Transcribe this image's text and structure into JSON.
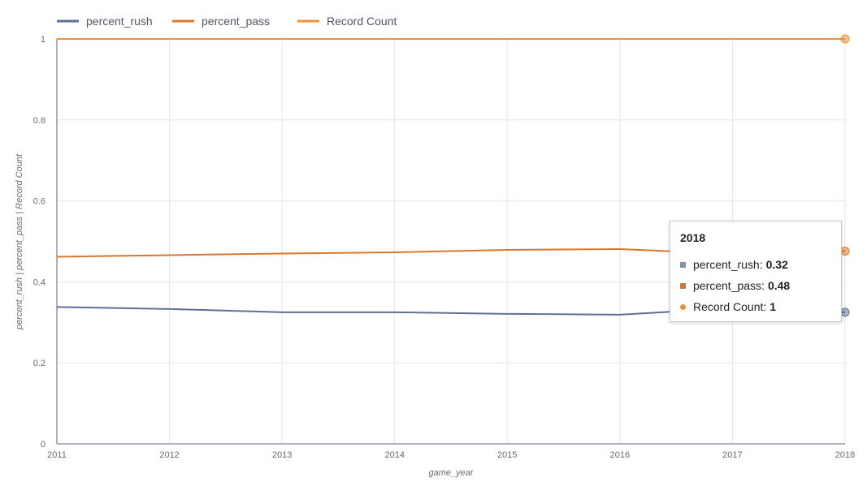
{
  "chart_data": {
    "type": "line",
    "x": [
      2011,
      2012,
      2013,
      2014,
      2015,
      2016,
      2017,
      2018
    ],
    "series": [
      {
        "name": "percent_rush",
        "color": "#5f6f94",
        "values": [
          0.338,
          0.333,
          0.325,
          0.325,
          0.321,
          0.319,
          0.335,
          0.325
        ]
      },
      {
        "name": "percent_pass",
        "color": "#d9782d",
        "values": [
          0.462,
          0.466,
          0.47,
          0.473,
          0.479,
          0.481,
          0.469,
          0.476
        ]
      },
      {
        "name": "Record Count",
        "color": "#f0913a",
        "values": [
          1,
          1,
          1,
          1,
          1,
          1,
          1,
          1
        ]
      }
    ],
    "xlabel": "game_year",
    "ylabel": "percent_rush | percent_pass | Record Count",
    "ylim": [
      0,
      1
    ],
    "yticks": [
      "0",
      "0.2",
      "0.4",
      "0.6",
      "0.8",
      "1"
    ],
    "xticks": [
      "2011",
      "2012",
      "2013",
      "2014",
      "2015",
      "2016",
      "2017",
      "2018"
    ],
    "grid": true,
    "legend": "top-left"
  },
  "tooltip": {
    "title": "2018",
    "rows": [
      {
        "label": "percent_rush:",
        "value": "0.32"
      },
      {
        "label": "percent_pass:",
        "value": "0.48"
      },
      {
        "label": "Record Count:",
        "value": "1"
      }
    ]
  }
}
